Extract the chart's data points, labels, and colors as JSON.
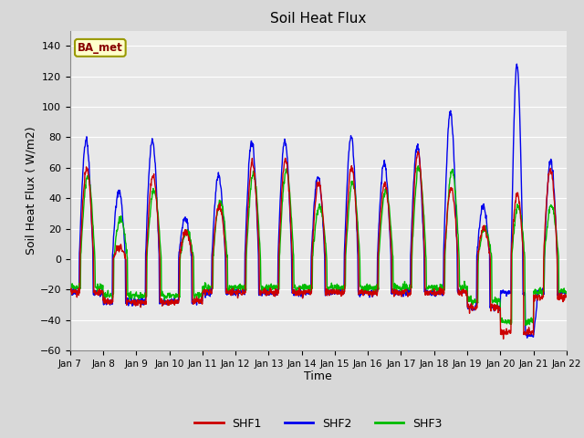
{
  "title": "Soil Heat Flux",
  "xlabel": "Time",
  "ylabel": "Soil Heat Flux ( W/m2)",
  "ylim": [
    -60,
    150
  ],
  "yticks": [
    -60,
    -40,
    -20,
    0,
    20,
    40,
    60,
    80,
    100,
    120,
    140
  ],
  "xtick_labels": [
    "Jan 7",
    "Jan 8",
    "Jan 9",
    "Jan 10",
    "Jan 11",
    "Jan 12",
    "Jan 13",
    "Jan 14",
    "Jan 15",
    "Jan 16",
    "Jan 17",
    "Jan 18",
    "Jan 19",
    "Jan 20",
    "Jan 21",
    "Jan 22"
  ],
  "colors": {
    "SHF1": "#cc0000",
    "SHF2": "#0000ee",
    "SHF3": "#00bb00"
  },
  "legend_label": "BA_met",
  "legend_bg": "#ffffcc",
  "legend_border": "#999900",
  "fig_bg": "#d8d8d8",
  "plot_bg": "#e8e8e8",
  "grid_color": "#ffffff",
  "line_width": 1.0,
  "n_days": 15,
  "pts_per_day": 96
}
